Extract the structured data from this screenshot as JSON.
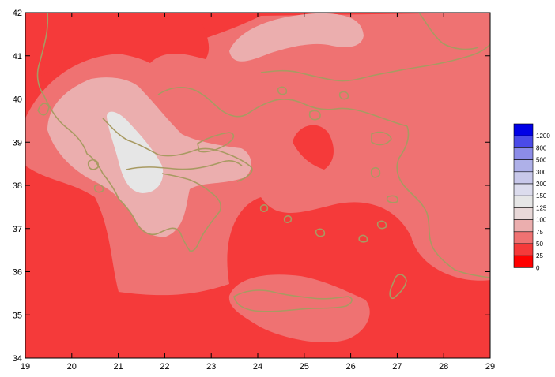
{
  "axes": {
    "x_ticks": [
      "19",
      "20",
      "21",
      "22",
      "23",
      "24",
      "25",
      "26",
      "27",
      "28",
      "29"
    ],
    "y_ticks": [
      "34",
      "35",
      "36",
      "37",
      "38",
      "39",
      "40",
      "41",
      "42"
    ],
    "x_range": [
      19,
      29
    ],
    "y_range": [
      34,
      42
    ]
  },
  "legend": {
    "position": "right",
    "items": [
      {
        "label": "1200",
        "color": "#0000e6"
      },
      {
        "label": "800",
        "color": "#4b4be8"
      },
      {
        "label": "500",
        "color": "#8c8ce8"
      },
      {
        "label": "300",
        "color": "#aeb0e8"
      },
      {
        "label": "200",
        "color": "#c8c8ea"
      },
      {
        "label": "150",
        "color": "#dcdced"
      },
      {
        "label": "125",
        "color": "#e6e6e6"
      },
      {
        "label": "100",
        "color": "#e8d8d8"
      },
      {
        "label": "75",
        "color": "#ebaeae"
      },
      {
        "label": "50",
        "color": "#ef7272"
      },
      {
        "label": "25",
        "color": "#f53a3a"
      },
      {
        "label": "0",
        "color": "#ff0000"
      }
    ]
  },
  "map": {
    "coastline_color": "#a89a62",
    "base_color": "#f53a3a"
  }
}
